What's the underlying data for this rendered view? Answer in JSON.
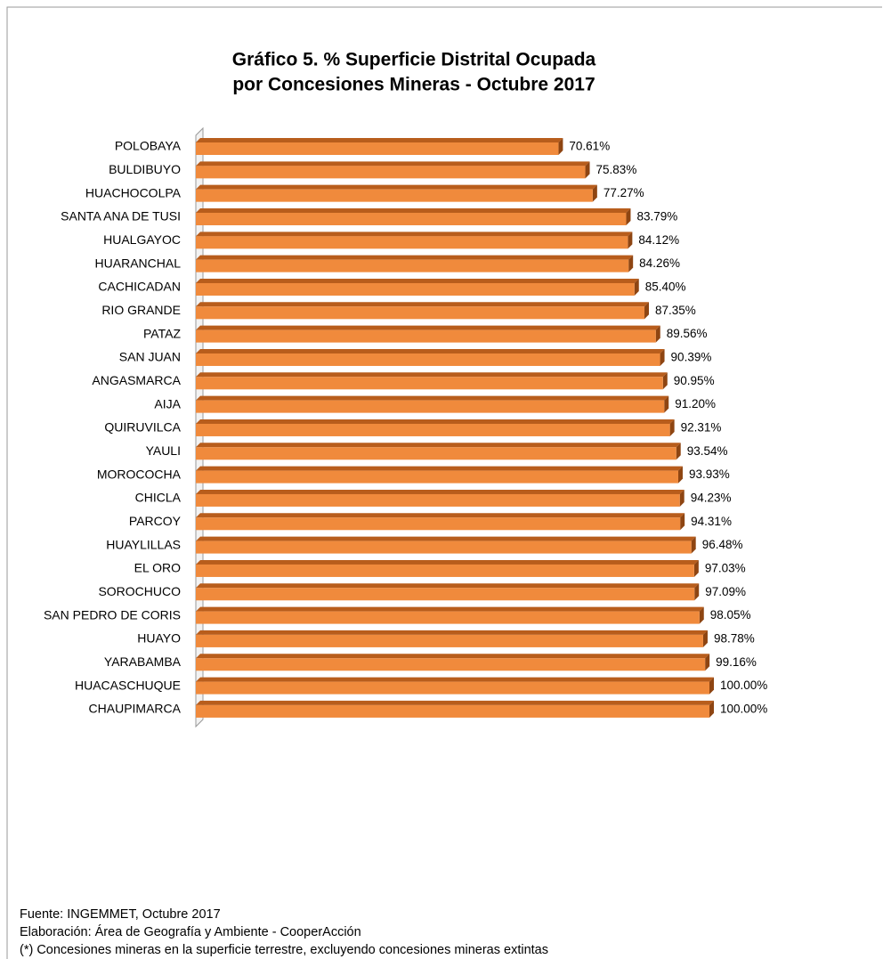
{
  "chart_data": {
    "type": "bar",
    "orientation": "horizontal",
    "title": [
      "Gráfico 5. % Superficie Distrital Ocupada",
      "por Concesiones Mineras - Octubre 2017"
    ],
    "categories": [
      "POLOBAYA",
      "BULDIBUYO",
      "HUACHOCOLPA",
      "SANTA ANA DE TUSI",
      "HUALGAYOC",
      "HUARANCHAL",
      "CACHICADAN",
      "RIO GRANDE",
      "PATAZ",
      "SAN JUAN",
      "ANGASMARCA",
      "AIJA",
      "QUIRUVILCA",
      "YAULI",
      "MOROCOCHA",
      "CHICLA",
      "PARCOY",
      "HUAYLILLAS",
      "EL ORO",
      "SOROCHUCO",
      "SAN PEDRO DE CORIS",
      "HUAYO",
      "YARABAMBA",
      "HUACASCHUQUE",
      "CHAUPIMARCA"
    ],
    "values": [
      70.61,
      75.83,
      77.27,
      83.79,
      84.12,
      84.26,
      85.4,
      87.35,
      89.56,
      90.39,
      90.95,
      91.2,
      92.31,
      93.54,
      93.93,
      94.23,
      94.31,
      96.48,
      97.03,
      97.09,
      98.05,
      98.78,
      99.16,
      100.0,
      100.0
    ],
    "value_labels": [
      "70.61%",
      "75.83%",
      "77.27%",
      "83.79%",
      "84.12%",
      "84.26%",
      "85.40%",
      "87.35%",
      "89.56%",
      "90.39%",
      "90.95%",
      "91.20%",
      "92.31%",
      "93.54%",
      "93.93%",
      "94.23%",
      "94.31%",
      "96.48%",
      "97.03%",
      "97.09%",
      "98.05%",
      "98.78%",
      "99.16%",
      "100.00%",
      "100.00%"
    ],
    "color": "#f08a3c",
    "xlim": [
      0,
      100
    ],
    "notes": [
      "Fuente: INGEMMET, Octubre 2017",
      "Elaboración: Área de Geografía y Ambiente - CooperAcción",
      "(*) Concesiones mineras en la superficie terrestre, excluyendo concesiones mineras extintas"
    ]
  }
}
